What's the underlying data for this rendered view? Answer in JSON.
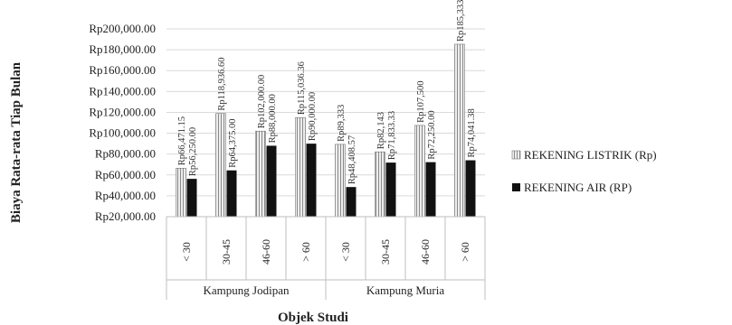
{
  "chart_data": {
    "type": "bar",
    "ylabel": "Biaya Rata-rata Tiap Bulan",
    "xlabel": "Objek Studi",
    "ylim": [
      20000,
      200000
    ],
    "yticks": [
      "Rp20,000.00",
      "Rp40,000.00",
      "Rp60,000.00",
      "Rp80,000.00",
      "Rp100,000.00",
      "Rp120,000.00",
      "Rp140,000.00",
      "Rp160,000.00",
      "Rp180,000.00",
      "Rp200,000.00"
    ],
    "ytick_values": [
      20000,
      40000,
      60000,
      80000,
      100000,
      120000,
      140000,
      160000,
      180000,
      200000
    ],
    "groups": [
      {
        "name": "Kampung Jodipan",
        "categories": [
          "< 30",
          "30-45",
          "46-60",
          "> 60"
        ]
      },
      {
        "name": "Kampung Muria",
        "categories": [
          "< 30",
          "30-45",
          "46-60",
          "> 60"
        ]
      }
    ],
    "series": [
      {
        "name": "REKENING LISTRIK (Rp)",
        "color": "#b9b9b9",
        "pattern": "hatched",
        "values": [
          66471.15,
          118936.6,
          102000,
          115036.36,
          89333,
          82143,
          107500,
          185333
        ],
        "labels": [
          "Rp66,471.15",
          "Rp118,936.60",
          "Rp102,000.00",
          "Rp115,036.36",
          "Rp89,333",
          "Rp82,143",
          "Rp107,500",
          "Rp185,333"
        ]
      },
      {
        "name": "REKENING AIR (RP)",
        "color": "#111111",
        "pattern": "solid",
        "values": [
          56250,
          64375,
          88000,
          90000,
          48408.57,
          71833.33,
          72250,
          74041.38
        ],
        "labels": [
          "Rp56,250.00",
          "Rp64,375.00",
          "Rp88,000.00",
          "Rp90,000.00",
          "Rp48,408.57",
          "Rp71,833.33",
          "Rp72,250.00",
          "Rp74,041.38"
        ]
      }
    ],
    "legend_position": "right",
    "grid": true
  }
}
